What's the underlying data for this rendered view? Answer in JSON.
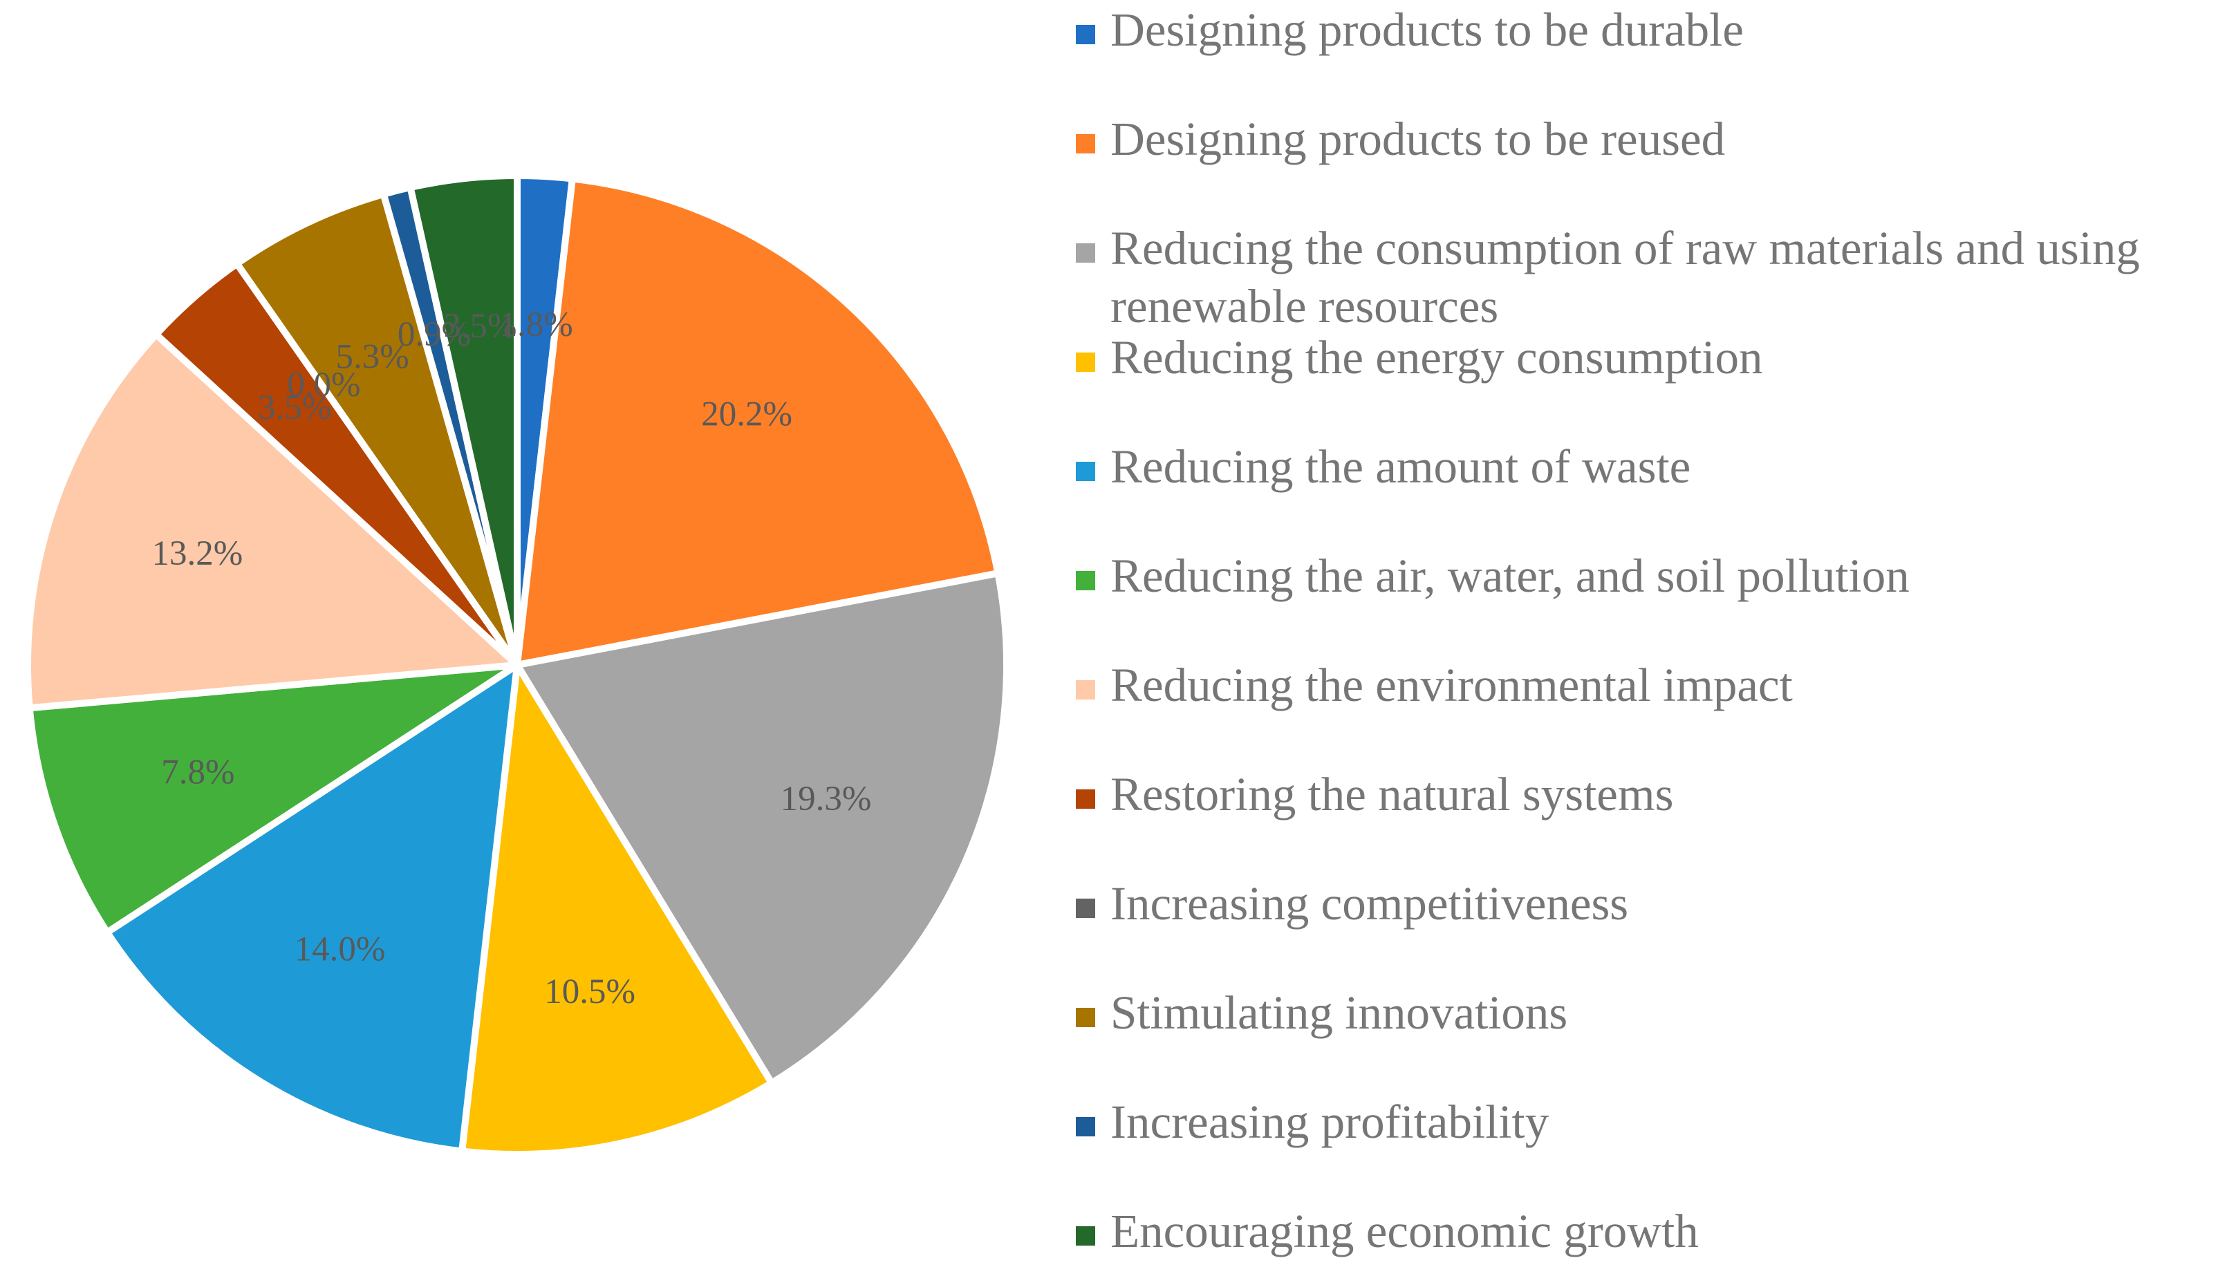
{
  "chart_data": {
    "type": "pie",
    "title": "",
    "legend_position": "right",
    "slices": [
      {
        "label": "Designing products to be durable",
        "value": 1.8,
        "value_label": "1.8%",
        "color": "#1F6FC5"
      },
      {
        "label": "Designing products to be reused",
        "value": 20.2,
        "value_label": "20.2%",
        "color": "#FF7F27"
      },
      {
        "label": "Reducing the consumption of raw materials and using renewable resources",
        "value": 19.3,
        "value_label": "19.3%",
        "color": "#A5A5A5",
        "legend_lines": [
          "Reducing the consumption of raw materials and using",
          "renewable resources"
        ]
      },
      {
        "label": "Reducing the energy consumption",
        "value": 10.5,
        "value_label": "10.5%",
        "color": "#FFC000"
      },
      {
        "label": "Reducing the amount of waste",
        "value": 14.0,
        "value_label": "14.0%",
        "color": "#1E9BD7"
      },
      {
        "label": "Reducing the air, water, and soil pollution",
        "value": 7.8,
        "value_label": "7.8%",
        "color": "#43B03C"
      },
      {
        "label": "Reducing the environmental impact",
        "value": 13.2,
        "value_label": "13.2%",
        "color": "#FFCAAA"
      },
      {
        "label": "Restoring the natural systems",
        "value": 3.5,
        "value_label": "3.5%",
        "color": "#B54304"
      },
      {
        "label": "Increasing competitiveness",
        "value": 0.0,
        "value_label": "0.0%",
        "color": "#636363"
      },
      {
        "label": "Stimulating innovations",
        "value": 5.3,
        "value_label": "5.3%",
        "color": "#A87400"
      },
      {
        "label": "Increasing profitability",
        "value": 0.9,
        "value_label": "0.9%",
        "color": "#1C5D99"
      },
      {
        "label": "Encouraging economic growth",
        "value": 3.5,
        "value_label": "3.5%",
        "color": "#23692A"
      }
    ]
  }
}
